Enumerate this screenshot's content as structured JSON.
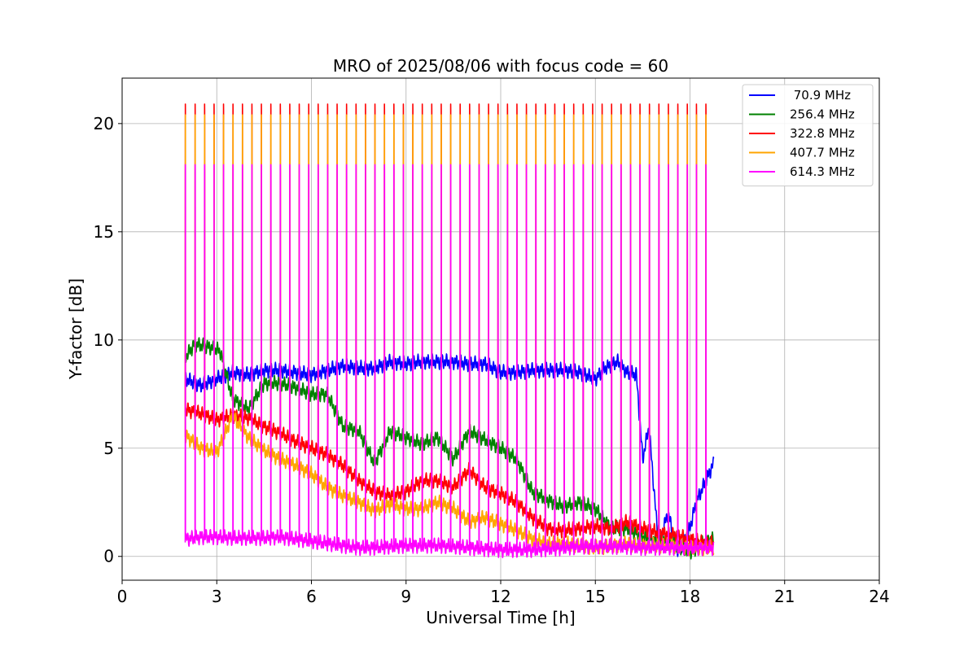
{
  "chart_data": {
    "type": "line",
    "title": "MRO of 2025/08/06 with focus code = 60",
    "xlabel": "Universal Time [h]",
    "ylabel": "Y-factor [dB]",
    "xlim": [
      0,
      24
    ],
    "ylim": [
      -1.1,
      22.1
    ],
    "xticks": [
      0,
      3,
      6,
      9,
      12,
      15,
      18,
      21,
      24
    ],
    "yticks": [
      0,
      5,
      10,
      15,
      20
    ],
    "grid": true,
    "legend_position": "top-right",
    "data_start_hour": 2.0,
    "data_end_hour": 18.75,
    "calibration_spike_period_hours": 0.3,
    "series": [
      {
        "name": " 70.9 MHz",
        "color": "#0000ff",
        "x": [
          2.0,
          2.5,
          3.0,
          3.5,
          4.0,
          4.5,
          5.0,
          5.5,
          6.0,
          6.5,
          7.0,
          7.5,
          8.0,
          8.5,
          9.0,
          9.5,
          10.0,
          10.5,
          11.0,
          11.5,
          12.0,
          12.5,
          13.0,
          13.5,
          14.0,
          14.5,
          15.0,
          15.3,
          15.7,
          16.0,
          16.3,
          16.5,
          16.7,
          17.0,
          17.3,
          17.6,
          17.9,
          18.2,
          18.5,
          18.75
        ],
        "values": [
          8.2,
          7.9,
          8.2,
          8.5,
          8.4,
          8.6,
          8.6,
          8.5,
          8.4,
          8.6,
          8.8,
          8.7,
          8.7,
          9.0,
          8.9,
          9.0,
          9.0,
          9.0,
          8.9,
          8.9,
          8.5,
          8.5,
          8.6,
          8.6,
          8.6,
          8.5,
          8.2,
          8.7,
          9.0,
          8.5,
          8.4,
          4.5,
          6.0,
          0.5,
          2.0,
          0.3,
          0.8,
          2.5,
          3.5,
          4.3
        ]
      },
      {
        "name": "256.4 MHz",
        "color": "#008000",
        "x": [
          2.0,
          2.3,
          2.7,
          3.1,
          3.5,
          4.0,
          4.5,
          5.0,
          5.5,
          6.0,
          6.5,
          7.0,
          7.5,
          8.0,
          8.5,
          9.0,
          9.5,
          10.0,
          10.5,
          11.0,
          11.5,
          12.0,
          12.5,
          13.0,
          13.5,
          14.0,
          14.5,
          15.0,
          15.5,
          16.0,
          16.5,
          17.0,
          17.5,
          18.0,
          18.5,
          18.75
        ],
        "values": [
          9.2,
          9.8,
          9.7,
          9.5,
          7.3,
          6.8,
          8.0,
          8.0,
          7.8,
          7.5,
          7.5,
          6.0,
          5.8,
          4.3,
          5.8,
          5.5,
          5.2,
          5.5,
          4.5,
          5.8,
          5.4,
          5.0,
          4.5,
          3.0,
          2.6,
          2.3,
          2.5,
          2.2,
          1.3,
          1.3,
          0.9,
          0.7,
          0.6,
          0.2,
          0.7,
          0.8
        ]
      },
      {
        "name": "322.8 MHz",
        "color": "#ff0000",
        "x": [
          2.0,
          2.5,
          3.0,
          3.5,
          4.0,
          4.5,
          5.0,
          5.5,
          6.0,
          6.5,
          7.0,
          7.5,
          8.0,
          8.5,
          9.0,
          9.5,
          10.0,
          10.5,
          11.0,
          11.5,
          12.0,
          12.5,
          13.0,
          13.5,
          14.0,
          14.5,
          15.0,
          15.5,
          16.0,
          16.5,
          17.0,
          17.5,
          18.0,
          18.5,
          18.75
        ],
        "values": [
          6.8,
          6.6,
          6.3,
          6.5,
          6.4,
          6.0,
          5.7,
          5.3,
          5.0,
          4.7,
          4.2,
          3.5,
          3.0,
          2.8,
          3.0,
          3.5,
          3.5,
          3.2,
          4.0,
          3.2,
          2.9,
          2.5,
          1.8,
          1.3,
          1.2,
          1.3,
          1.4,
          1.3,
          1.6,
          1.3,
          1.1,
          1.0,
          0.8,
          0.6,
          0.6
        ]
      },
      {
        "name": "407.7 MHz",
        "color": "#ffa500",
        "x": [
          2.0,
          2.5,
          3.0,
          3.5,
          4.0,
          4.5,
          5.0,
          5.5,
          6.0,
          6.5,
          7.0,
          7.5,
          8.0,
          8.5,
          9.0,
          9.5,
          10.0,
          10.5,
          11.0,
          11.5,
          12.0,
          12.5,
          13.0,
          13.5,
          14.0,
          14.5,
          15.0,
          15.5,
          16.0,
          16.5,
          17.0,
          17.5,
          18.0,
          18.5,
          18.75
        ],
        "values": [
          5.6,
          5.0,
          4.8,
          6.5,
          5.5,
          4.9,
          4.5,
          4.2,
          3.8,
          3.2,
          2.8,
          2.5,
          2.1,
          2.4,
          2.2,
          2.2,
          2.5,
          2.2,
          1.6,
          1.8,
          1.5,
          1.2,
          0.8,
          0.6,
          0.6,
          0.5,
          0.4,
          0.5,
          0.6,
          0.5,
          0.5,
          0.5,
          0.4,
          0.4,
          0.4
        ]
      },
      {
        "name": "614.3 MHz",
        "color": "#ff00ff",
        "x": [
          2.0,
          2.5,
          3.0,
          3.5,
          4.0,
          4.5,
          5.0,
          5.5,
          6.0,
          6.5,
          7.0,
          7.5,
          8.0,
          8.5,
          9.0,
          9.5,
          10.0,
          10.5,
          11.0,
          11.5,
          12.0,
          12.5,
          13.0,
          13.5,
          14.0,
          14.5,
          15.0,
          15.5,
          16.0,
          16.5,
          17.0,
          17.5,
          18.0,
          18.5,
          18.75
        ],
        "values": [
          0.8,
          0.9,
          0.9,
          0.85,
          0.85,
          0.85,
          0.9,
          0.8,
          0.7,
          0.6,
          0.5,
          0.4,
          0.4,
          0.45,
          0.5,
          0.5,
          0.5,
          0.45,
          0.4,
          0.35,
          0.3,
          0.3,
          0.3,
          0.35,
          0.4,
          0.45,
          0.45,
          0.45,
          0.45,
          0.4,
          0.4,
          0.4,
          0.4,
          0.4,
          0.4
        ]
      }
    ],
    "calibration_peaks": {
      "322.8 MHz": 20.9,
      "407.7 MHz": 20.4,
      "614.3 MHz": 18.1
    }
  }
}
